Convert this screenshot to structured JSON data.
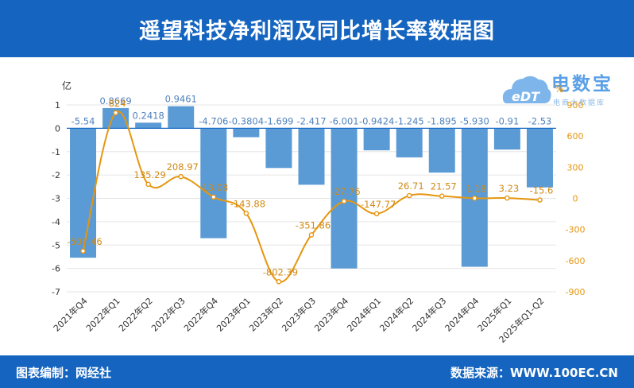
{
  "title": "遥望科技净利润及同比增长率数据图",
  "footer": {
    "editor": "图表编制：网经社",
    "source": "数据来源：WWW.100EC.CN"
  },
  "logo": {
    "text": "电数宝",
    "sub": "电商大数据库"
  },
  "colors": {
    "header_bg": "#1565c0",
    "bar": "#5b9bd5",
    "line": "#e6960f",
    "bar_label": "#4f81bd",
    "line_label": "#d18a14"
  },
  "chart_data": {
    "type": "bar",
    "categories": [
      "2021年Q4",
      "2022年Q1",
      "2022年Q2",
      "2022年Q3",
      "2022年Q4",
      "2023年Q1",
      "2023年Q2",
      "2023年Q3",
      "2023年Q4",
      "2024年Q1",
      "2024年Q2",
      "2024年Q3",
      "2024年Q4",
      "2025年Q1",
      "2025年Q1-Q2"
    ],
    "series": [
      {
        "axis": "left",
        "type": "bar",
        "values": [
          -5.54,
          0.8669,
          0.2418,
          0.9461,
          -4.706,
          -0.3804,
          -1.699,
          -2.417,
          -6.001,
          -0.9424,
          -1.245,
          -1.895,
          -5.93,
          -0.91,
          -2.53
        ],
        "labels": [
          "-5.54",
          "0.8669",
          "0.2418",
          "0.9461",
          "-4.706",
          "-0.3804",
          "-1.699",
          "-2.417",
          "-6.001",
          "-0.9424",
          "-1.245",
          "-1.895",
          "-5.930",
          "-0.91",
          "-2.53"
        ]
      },
      {
        "axis": "right",
        "type": "line",
        "values": [
          -507.46,
          824,
          135.29,
          208.97,
          13.08,
          -143.88,
          -802.39,
          -351.86,
          -27.76,
          -147.77,
          26.71,
          21.57,
          1.18,
          3.23,
          -15.6
        ],
        "labels": [
          "-507.46",
          "824",
          "135.29",
          "208.97",
          "13.08",
          "-143.88",
          "-802.39",
          "-351.86",
          "-27.76",
          "-147.77",
          "26.71",
          "21.57",
          "1.18",
          "3.23",
          "-15.6"
        ]
      }
    ],
    "y_left": {
      "unit": "亿",
      "ylim": [
        -7,
        1
      ],
      "ticks": [
        "1",
        "0",
        "-1",
        "-2",
        "-3",
        "-4",
        "-5",
        "-6",
        "-7"
      ]
    },
    "y_right": {
      "unit": "%",
      "ylim": [
        -900,
        900
      ],
      "ticks": [
        "900",
        "600",
        "300",
        "0",
        "-300",
        "-600",
        "-900"
      ]
    },
    "grid": true,
    "legend": "none"
  }
}
